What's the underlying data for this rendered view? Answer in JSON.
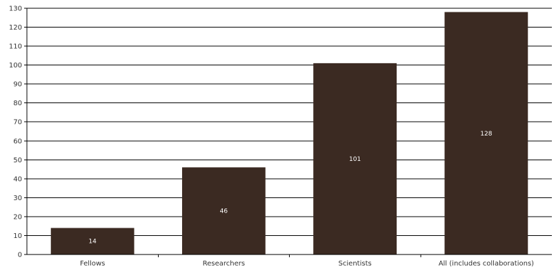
{
  "chart_data": {
    "type": "bar",
    "title": "",
    "xlabel": "",
    "ylabel": "",
    "categories": [
      "Fellows",
      "Researchers",
      "Scientists",
      "All (includes collaborations)"
    ],
    "values": [
      14,
      46,
      101,
      128
    ],
    "data_labels": [
      "14",
      "46",
      "101",
      "128"
    ],
    "ylim": [
      0,
      130
    ],
    "y_ticks": [
      0,
      10,
      20,
      30,
      40,
      50,
      60,
      70,
      80,
      90,
      100,
      110,
      120,
      130
    ],
    "grid": true,
    "legend": "none",
    "bar_color": "#3b2a22",
    "grid_color": "#000000"
  }
}
